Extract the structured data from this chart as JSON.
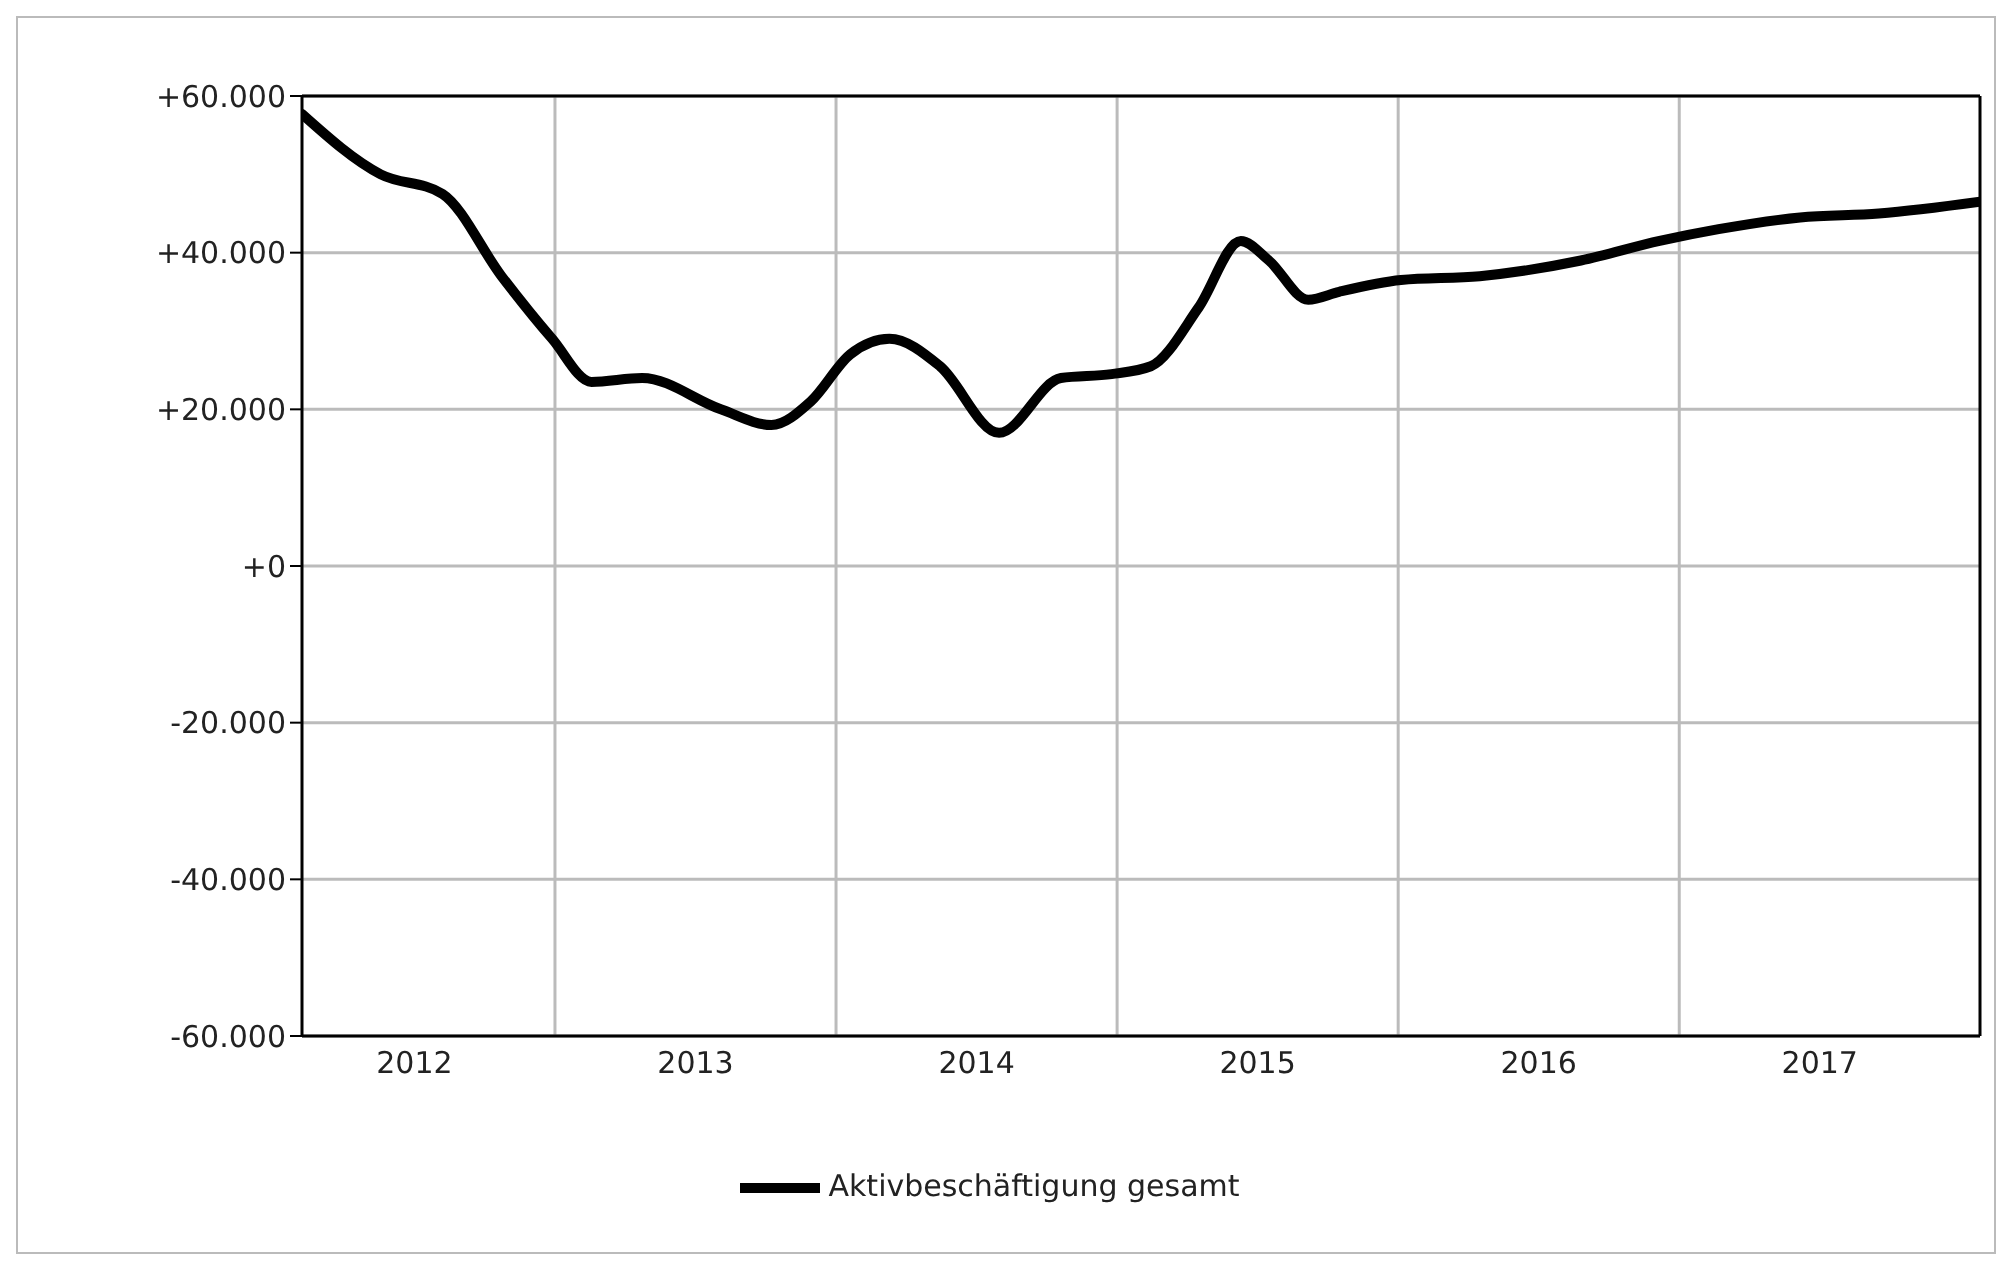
{
  "chart_data": {
    "type": "line",
    "x": [
      2012.1,
      2012.38,
      2012.6,
      2012.81,
      2012.99,
      2013.13,
      2013.31,
      2013.59,
      2013.77,
      2013.91,
      2014.05,
      2014.19,
      2014.37,
      2014.58,
      2014.8,
      2014.98,
      2015.12,
      2015.29,
      2015.44,
      2015.54,
      2015.68,
      2015.79,
      2016.01,
      2016.29,
      2016.65,
      2016.93,
      2017.14,
      2017.43,
      2017.71,
      2018.07
    ],
    "series": [
      {
        "name": "Aktivbeschäftigung gesamt",
        "color": "#000000",
        "values": [
          57700,
          50000,
          47500,
          37000,
          29000,
          23500,
          24000,
          20000,
          18000,
          21000,
          27000,
          29000,
          25500,
          17000,
          24000,
          24500,
          25500,
          33000,
          41500,
          39000,
          34000,
          35000,
          36500,
          37000,
          39000,
          41500,
          43000,
          44500,
          45000,
          46500
        ]
      }
    ],
    "xlim": [
      2012.1,
      2018.07
    ],
    "xticks": [
      {
        "value": 2012.5,
        "label": "2012"
      },
      {
        "value": 2013,
        "label": null
      },
      {
        "value": 2013.5,
        "label": "2013"
      },
      {
        "value": 2014,
        "label": null
      },
      {
        "value": 2014.5,
        "label": "2014"
      },
      {
        "value": 2015,
        "label": null
      },
      {
        "value": 2015.5,
        "label": "2015"
      },
      {
        "value": 2016,
        "label": null
      },
      {
        "value": 2016.5,
        "label": "2016"
      },
      {
        "value": 2017,
        "label": null
      },
      {
        "value": 2017.5,
        "label": "2017"
      }
    ],
    "ylim": [
      -60000,
      60000
    ],
    "yticks": [
      {
        "value": -60000,
        "label": "-60.000"
      },
      {
        "value": -40000,
        "label": "-40.000"
      },
      {
        "value": -20000,
        "label": "-20.000"
      },
      {
        "value": 0,
        "label": "+0"
      },
      {
        "value": 20000,
        "label": "+20.000"
      },
      {
        "value": 40000,
        "label": "+40.000"
      },
      {
        "value": 60000,
        "label": "+60.000"
      }
    ],
    "grid": true,
    "legend": "bottom",
    "marker": "none",
    "line_style": "solid"
  }
}
